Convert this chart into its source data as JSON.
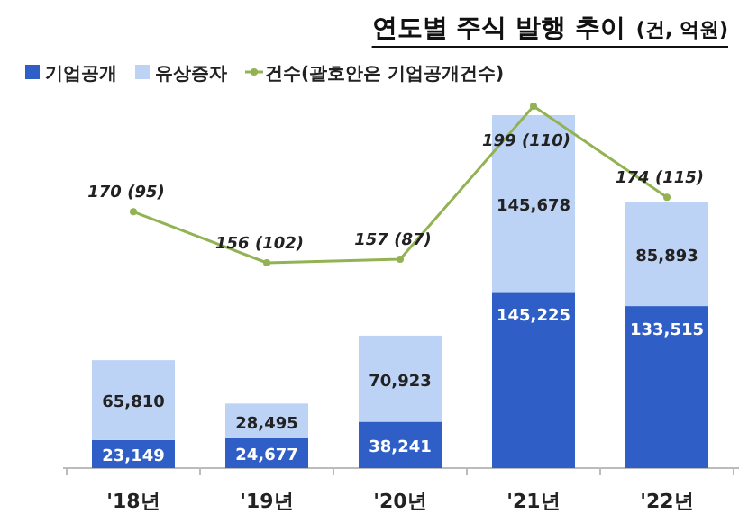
{
  "chart_data": {
    "type": "bar",
    "title": "연도별 주식 발행 추이",
    "subtitle": "(건, 억원)",
    "categories": [
      "'18년",
      "'19년",
      "'20년",
      "'21년",
      "'22년"
    ],
    "stacked": true,
    "legend": "top left",
    "series": [
      {
        "name": "기업공개",
        "color": "#2f5fc6",
        "values": [
          23149,
          24677,
          38241,
          145225,
          133515
        ],
        "value_labels": [
          "23,149",
          "24,677",
          "38,241",
          "145,225",
          "133,515"
        ]
      },
      {
        "name": "유상증자",
        "color": "#bdd3f6",
        "values": [
          65810,
          28495,
          70923,
          145678,
          85893
        ],
        "value_labels": [
          "65,810",
          "28,495",
          "70,923",
          "145,678",
          "85,893"
        ]
      },
      {
        "name": "건수(괄호안은 기업공개건수)",
        "type": "line",
        "axis": "y2",
        "marker": "circle",
        "color": "#93b353",
        "values": [
          170,
          156,
          157,
          199,
          174
        ],
        "value_labels": [
          "170 (95)",
          "156 (102)",
          "157 (87)",
          "199 (110)",
          "174 (115)"
        ]
      }
    ]
  }
}
